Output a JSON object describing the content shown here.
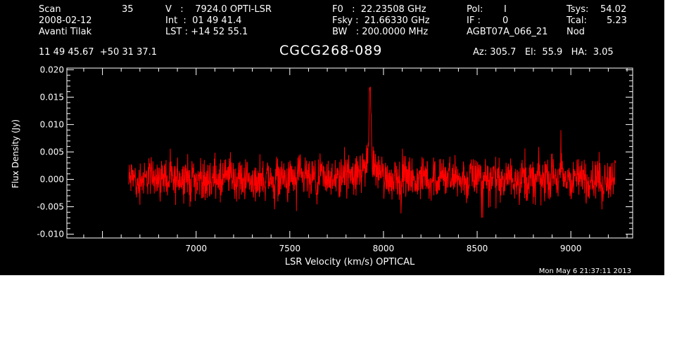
{
  "header": {
    "scan_label": "Scan",
    "scan_value": "35",
    "date": "2008-02-12",
    "observer": "Avanti Tilak",
    "ra_dec": "11 49 45.67  +50 31 37.1",
    "v_line": "V   :    7924.0 OPTI-LSR",
    "int_line": "Int  :  01 49 41.4",
    "lst_line": "LST : +14 52 55.1",
    "f0_line": "F0   :  22.23508 GHz",
    "fsky_line": "Fsky :  21.66330 GHz",
    "bw_line": "BW   : 200.0000 MHz",
    "pol_label": "Pol:",
    "pol_value": "I",
    "if_label": "IF :",
    "if_value": "0",
    "project": "AGBT07A_066_21",
    "tsys_label": "Tsys:",
    "tsys_value": "54.02",
    "tcal_label": "Tcal:",
    "tcal_value": "5.23",
    "mode": "Nod",
    "az_el_ha": "Az: 305.7   El:  55.9   HA:  3.05",
    "source": "CGCG268-089",
    "timestamp": "Mon May  6 21:37:11 2013"
  },
  "colors": {
    "background": "#000000",
    "axes": "#ffffff",
    "trace": "#ff0000"
  },
  "chart_data": {
    "type": "line",
    "title": "CGCG268-089",
    "xlabel": "LSR Velocity (km/s) OPTICAL",
    "ylabel": "Flux Density (Jy)",
    "xlim": [
      6310,
      9330
    ],
    "ylim": [
      -0.0107,
      0.0203
    ],
    "xticks": [
      7000,
      7500,
      8000,
      8500,
      9000
    ],
    "xtick_labels": [
      "7000",
      "7500",
      "8000",
      "8500",
      "9000"
    ],
    "yticks": [
      -0.01,
      -0.005,
      0.0,
      0.005,
      0.01,
      0.015,
      0.02
    ],
    "ytick_labels": [
      "-0.010",
      "-0.005",
      "0.000",
      "0.005",
      "0.010",
      "0.015",
      "0.020"
    ],
    "grid": false,
    "legend": "none",
    "series": [
      {
        "x": [
          6640,
          6660,
          6680,
          6700,
          6720,
          6740,
          6760,
          6780,
          6800,
          6820,
          6840,
          6860,
          6880,
          6900,
          6920,
          6940,
          6960,
          6980,
          7000,
          7020,
          7040,
          7060,
          7080,
          7100,
          7120,
          7140,
          7160,
          7180,
          7200,
          7220,
          7240,
          7260,
          7280,
          7300,
          7320,
          7340,
          7360,
          7380,
          7400,
          7420,
          7440,
          7460,
          7480,
          7500,
          7520,
          7540,
          7560,
          7580,
          7600,
          7620,
          7640,
          7660,
          7680,
          7700,
          7720,
          7740,
          7760,
          7780,
          7800,
          7820,
          7840,
          7860,
          7880,
          7890,
          7900,
          7910,
          7920,
          7925,
          7930,
          7935,
          7940,
          7950,
          7960,
          7980,
          8000,
          8020,
          8040,
          8060,
          8080,
          8100,
          8120,
          8140,
          8160,
          8180,
          8200,
          8220,
          8240,
          8260,
          8280,
          8300,
          8320,
          8340,
          8360,
          8380,
          8400,
          8420,
          8440,
          8460,
          8480,
          8500,
          8520,
          8540,
          8560,
          8580,
          8600,
          8620,
          8640,
          8660,
          8680,
          8700,
          8720,
          8740,
          8760,
          8780,
          8800,
          8820,
          8840,
          8860,
          8880,
          8900,
          8920,
          8940,
          8960,
          8980,
          9000,
          9020,
          9040,
          9060,
          9080,
          9100,
          9120,
          9140,
          9160,
          9180,
          9200,
          9220,
          9240
        ],
        "y": [
          -0.001,
          0.003,
          -0.004,
          0.002,
          -0.003,
          0.004,
          -0.002,
          0.005,
          -0.004,
          0.006,
          -0.003,
          0.003,
          -0.005,
          0.004,
          -0.002,
          0.005,
          -0.004,
          0.003,
          -0.003,
          0.004,
          -0.005,
          0.002,
          -0.003,
          0.005,
          -0.004,
          0.003,
          -0.002,
          0.006,
          -0.004,
          0.003,
          -0.005,
          0.004,
          -0.003,
          0.002,
          -0.007,
          0.004,
          -0.003,
          0.005,
          -0.004,
          0.003,
          -0.002,
          0.004,
          -0.005,
          0.003,
          -0.004,
          0.005,
          -0.003,
          0.004,
          -0.004,
          0.003,
          -0.006,
          0.004,
          -0.003,
          0.005,
          -0.004,
          0.002,
          -0.003,
          0.006,
          -0.002,
          0.009,
          -0.003,
          0.004,
          -0.002,
          0.005,
          -0.001,
          0.004,
          0.002,
          0.016,
          0.003,
          0.007,
          0.001,
          0.004,
          -0.002,
          0.005,
          -0.003,
          0.004,
          -0.004,
          0.006,
          -0.003,
          0.005,
          -0.002,
          0.004,
          -0.005,
          0.003,
          -0.003,
          0.005,
          -0.004,
          0.004,
          -0.003,
          0.006,
          -0.002,
          0.003,
          -0.004,
          0.005,
          -0.003,
          0.004,
          -0.005,
          0.003,
          -0.002,
          0.005,
          -0.004,
          0.004,
          -0.003,
          0.006,
          -0.004,
          0.003,
          -0.005,
          0.004,
          -0.002,
          0.005,
          -0.003,
          0.004,
          -0.004,
          0.003,
          -0.005,
          0.005,
          -0.003,
          0.004,
          -0.002,
          0.005,
          -0.004,
          0.006,
          -0.003,
          0.004,
          -0.005,
          0.003,
          -0.002,
          0.005,
          -0.004,
          0.004,
          -0.003,
          0.005,
          -0.006,
          0.004,
          -0.003,
          0.005,
          -0.002
        ]
      }
    ]
  }
}
